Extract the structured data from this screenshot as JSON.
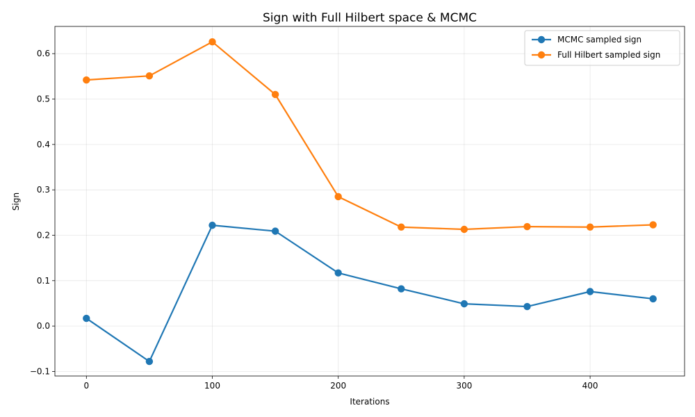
{
  "chart_data": {
    "type": "line",
    "title": "Sign with Full Hilbert space & MCMC",
    "xlabel": "Iterations",
    "ylabel": "Sign",
    "x": [
      0,
      50,
      100,
      150,
      200,
      250,
      300,
      350,
      400,
      450
    ],
    "xlim": [
      -25,
      475
    ],
    "ylim": [
      -0.11,
      0.66
    ],
    "xticks": [
      0,
      100,
      200,
      300,
      400
    ],
    "yticks": [
      -0.1,
      0.0,
      0.1,
      0.2,
      0.3,
      0.4,
      0.5,
      0.6
    ],
    "xtick_labels": [
      "0",
      "100",
      "200",
      "300",
      "400"
    ],
    "ytick_labels": [
      "−0.1",
      "0.0",
      "0.1",
      "0.2",
      "0.3",
      "0.4",
      "0.5",
      "0.6"
    ],
    "grid": true,
    "legend_position": "top-right",
    "series": [
      {
        "name": "MCMC sampled sign",
        "color": "#1f77b4",
        "values": [
          0.017,
          -0.078,
          0.222,
          0.209,
          0.117,
          0.082,
          0.049,
          0.043,
          0.076,
          0.06
        ]
      },
      {
        "name": "Full Hilbert sampled sign",
        "color": "#ff7f0e",
        "values": [
          0.542,
          0.551,
          0.626,
          0.51,
          0.285,
          0.218,
          0.213,
          0.219,
          0.218,
          0.223
        ]
      }
    ]
  }
}
